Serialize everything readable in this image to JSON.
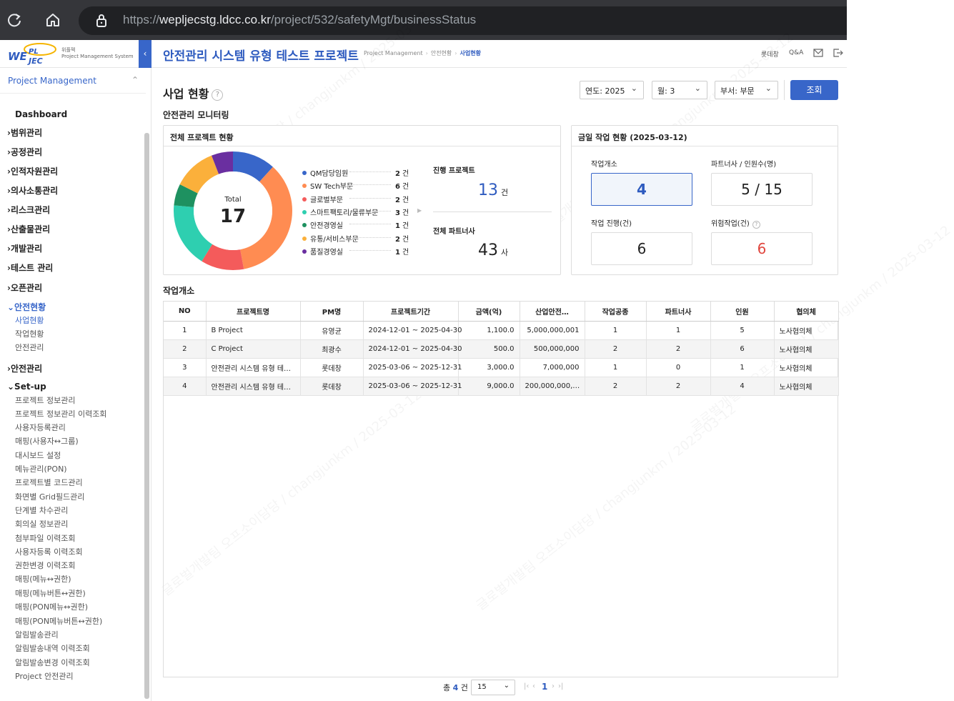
{
  "browser": {
    "url_host": "wepljecstg.ldcc.co.kr",
    "url_path": "/project/532/safetyMgt/businessStatus",
    "url_scheme": "https://"
  },
  "sidebar": {
    "logo_text": "WEPLJEC",
    "logo_sub1": "위플젝",
    "logo_sub2": "Project Management System",
    "collapse_glyph": "‹",
    "section_title": "Project Management",
    "items": [
      {
        "label": "Dashboard",
        "kind": "plain"
      },
      {
        "label": "›범위관리",
        "kind": "group"
      },
      {
        "label": "›공정관리",
        "kind": "group"
      },
      {
        "label": "›인적자원관리",
        "kind": "group"
      },
      {
        "label": "›의사소통관리",
        "kind": "group"
      },
      {
        "label": "›리스크관리",
        "kind": "group"
      },
      {
        "label": "›산출물관리",
        "kind": "group"
      },
      {
        "label": "›개발관리",
        "kind": "group"
      },
      {
        "label": "›테스트 관리",
        "kind": "group"
      },
      {
        "label": "›오픈관리",
        "kind": "group"
      },
      {
        "label": "⌄안전현황",
        "kind": "group-active"
      },
      {
        "label": "사업현황",
        "kind": "sub-active"
      },
      {
        "label": "작업현황",
        "kind": "sub"
      },
      {
        "label": "안전관리",
        "kind": "sub"
      },
      {
        "label": "›안전관리",
        "kind": "group"
      },
      {
        "label": "⌄Set-up",
        "kind": "group"
      },
      {
        "label": "프로젝트 정보관리",
        "kind": "sub"
      },
      {
        "label": "프로젝트 정보관리 이력조회",
        "kind": "sub"
      },
      {
        "label": "사용자등록관리",
        "kind": "sub"
      },
      {
        "label": "매핑(사용자↔그룹)",
        "kind": "sub"
      },
      {
        "label": "대시보드 설정",
        "kind": "sub"
      },
      {
        "label": "메뉴관리(PON)",
        "kind": "sub"
      },
      {
        "label": "프로젝트별 코드관리",
        "kind": "sub"
      },
      {
        "label": "화면별 Grid필드관리",
        "kind": "sub"
      },
      {
        "label": "단계별 차수관리",
        "kind": "sub"
      },
      {
        "label": "회의실 정보관리",
        "kind": "sub"
      },
      {
        "label": "첨부파일 이력조회",
        "kind": "sub"
      },
      {
        "label": "사용자등록 이력조회",
        "kind": "sub"
      },
      {
        "label": "권한변경 이력조회",
        "kind": "sub"
      },
      {
        "label": "매핑(메뉴↔권한)",
        "kind": "sub"
      },
      {
        "label": "매핑(메뉴버튼↔권한)",
        "kind": "sub"
      },
      {
        "label": "매핑(PON메뉴↔권한)",
        "kind": "sub"
      },
      {
        "label": "매핑(PON메뉴버튼↔권한)",
        "kind": "sub"
      },
      {
        "label": "알림발송관리",
        "kind": "sub"
      },
      {
        "label": "알림발송내역 이력조회",
        "kind": "sub"
      },
      {
        "label": "알림발송변경 이력조회",
        "kind": "sub"
      },
      {
        "label": "Project 안전관리",
        "kind": "sub"
      }
    ]
  },
  "header": {
    "project_title": "안전관리 시스템 유형 테스트 프로젝트",
    "breadcrumb": [
      "Project Management",
      "안전현황",
      "사업현황"
    ],
    "user": "롯데창",
    "qa": "Q&A"
  },
  "page": {
    "title": "사업 현황",
    "help_glyph": "?",
    "filters": {
      "year": "연도: 2025",
      "month": "월: 3",
      "dept": "부서: 부문"
    },
    "query_button": "조회",
    "monitoring_title": "안전관리 모니터링"
  },
  "overall": {
    "panel_title": "전체 프로젝트 현황",
    "total_label": "Total",
    "total_value": "17",
    "unit": "건",
    "legend": [
      {
        "name": "QM담당임원",
        "count": "2",
        "color": "#3866c9"
      },
      {
        "name": "SW Tech부문",
        "count": "6",
        "color": "#ff8c52"
      },
      {
        "name": "글로벌부문",
        "count": "2",
        "color": "#f45b5b"
      },
      {
        "name": "스마트팩토리/물류부문",
        "count": "3",
        "color": "#2ecfb0"
      },
      {
        "name": "안전경영실",
        "count": "1",
        "color": "#1e9160"
      },
      {
        "name": "유통/서비스부문",
        "count": "2",
        "color": "#fbb03b"
      },
      {
        "name": "품질경영실",
        "count": "1",
        "color": "#6a2fa0"
      }
    ],
    "ongoing_label": "진행 프로젝트",
    "ongoing_value": "13",
    "ongoing_unit": "건",
    "partners_label": "전체 파트너사",
    "partners_value": "43",
    "partners_unit": "사"
  },
  "today": {
    "panel_title": "금일 작업 현황 (2025-03-12)",
    "tiles": [
      {
        "label": "작업개소",
        "value": "4"
      },
      {
        "label": "파트너사 / 인원수(명)",
        "value": "5 / 15"
      },
      {
        "label": "작업 진행(건)",
        "value": "6"
      },
      {
        "label": "위험작업(건)",
        "value": "6"
      }
    ]
  },
  "worksites": {
    "title": "작업개소",
    "columns": [
      "NO",
      "프로젝트명",
      "PM명",
      "프로젝트기간",
      "금액(억)",
      "산업안전…",
      "작업공종",
      "파트너사",
      "인원",
      "협의체"
    ],
    "rows": [
      [
        "1",
        "B Project",
        "유영균",
        "2024-12-01 ~ 2025-04-30",
        "1,100.0",
        "5,000,000,001",
        "1",
        "1",
        "5",
        "노사협의체"
      ],
      [
        "2",
        "C Project",
        "최광수",
        "2024-12-01 ~ 2025-04-30",
        "500.0",
        "500,000,000",
        "2",
        "2",
        "6",
        "노사협의체"
      ],
      [
        "3",
        "안전관리 시스템 유형 테…",
        "롯데창",
        "2025-03-06 ~ 2025-12-31",
        "3,000.0",
        "7,000,000",
        "1",
        "0",
        "1",
        "노사협의체"
      ],
      [
        "4",
        "안전관리 시스템 유형 테…",
        "롯데창",
        "2025-03-06 ~ 2025-12-31",
        "9,000.0",
        "200,000,000,…",
        "2",
        "2",
        "4",
        "노사협의체"
      ]
    ]
  },
  "pagination": {
    "total_prefix": "총",
    "total_count": "4",
    "total_suffix": "건",
    "page_size": "15",
    "current_page": "1"
  },
  "watermark": "글로벌개발팀 오프소이담당 / changjunkm / 2025-03-12"
}
